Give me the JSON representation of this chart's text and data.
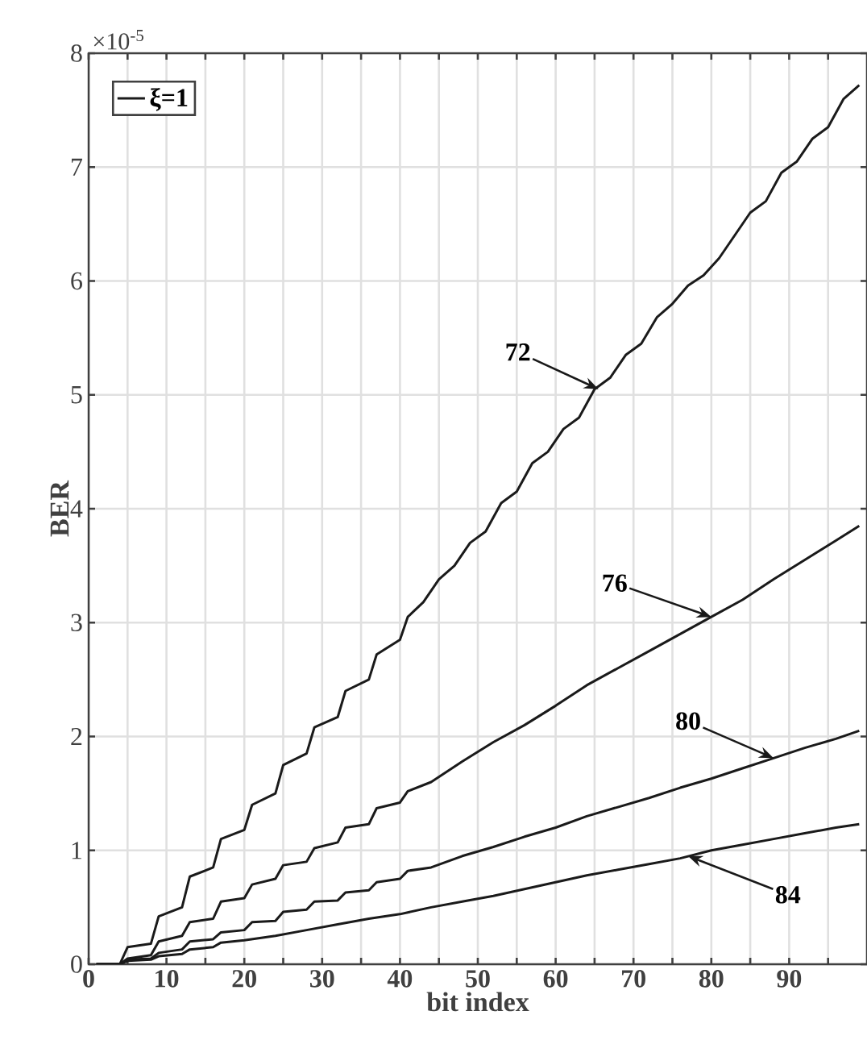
{
  "chart_data": {
    "type": "line",
    "xlabel": "bit index",
    "ylabel": "BER",
    "xlim": [
      0,
      100
    ],
    "ylim": [
      0,
      8
    ],
    "xticks": [
      0,
      {
        "value": 5,
        "label": null
      },
      10,
      {
        "value": 15,
        "label": null
      },
      20,
      {
        "value": 25,
        "label": null
      },
      30,
      {
        "value": 35,
        "label": null
      },
      40,
      {
        "value": 45,
        "label": null
      },
      50,
      {
        "value": 55,
        "label": null
      },
      60,
      {
        "value": 65,
        "label": null
      },
      70,
      {
        "value": 75,
        "label": null
      },
      80,
      {
        "value": 85,
        "label": null
      },
      90,
      {
        "value": 95,
        "label": null
      }
    ],
    "yticks": [
      0,
      1,
      2,
      3,
      4,
      5,
      6,
      7,
      8
    ],
    "grid": true,
    "legend": "top left",
    "series": [
      {
        "name": "ξ=1",
        "color": "#1a1a1a",
        "x": [
          1,
          4,
          5,
          8,
          9,
          12,
          13,
          16,
          17,
          20,
          21,
          24,
          25,
          28,
          29,
          32,
          33,
          36,
          37,
          40,
          41,
          43,
          45,
          47,
          49,
          51,
          53,
          55,
          57,
          59,
          61,
          63,
          65,
          67,
          69,
          71,
          73,
          75,
          77,
          79,
          81,
          83,
          85,
          87,
          89,
          91,
          93,
          95,
          97,
          99
        ],
        "values": [
          0,
          0,
          0.15,
          0.18,
          0.42,
          0.5,
          0.77,
          0.85,
          1.1,
          1.18,
          1.4,
          1.5,
          1.75,
          1.85,
          2.08,
          2.17,
          2.4,
          2.5,
          2.72,
          2.85,
          3.05,
          3.18,
          3.38,
          3.5,
          3.7,
          3.8,
          4.05,
          4.15,
          4.4,
          4.5,
          4.7,
          4.8,
          5.05,
          5.15,
          5.35,
          5.45,
          5.68,
          5.8,
          5.96,
          6.05,
          6.2,
          6.4,
          6.6,
          6.7,
          6.95,
          7.05,
          7.25,
          7.35,
          7.6,
          7.72
        ]
      },
      {
        "color": "#1a1a1a",
        "x": [
          1,
          4,
          5,
          8,
          9,
          12,
          13,
          16,
          17,
          20,
          21,
          24,
          25,
          28,
          29,
          32,
          33,
          36,
          37,
          40,
          41,
          44,
          48,
          52,
          56,
          60,
          64,
          68,
          72,
          76,
          80,
          84,
          88,
          92,
          96,
          99
        ],
        "values": [
          0,
          0,
          0.05,
          0.08,
          0.2,
          0.25,
          0.37,
          0.4,
          0.55,
          0.58,
          0.7,
          0.75,
          0.87,
          0.9,
          1.02,
          1.07,
          1.2,
          1.23,
          1.37,
          1.42,
          1.52,
          1.6,
          1.78,
          1.95,
          2.1,
          2.27,
          2.45,
          2.6,
          2.75,
          2.9,
          3.05,
          3.2,
          3.38,
          3.55,
          3.72,
          3.85
        ]
      },
      {
        "color": "#1a1a1a",
        "x": [
          1,
          4,
          5,
          8,
          9,
          12,
          13,
          16,
          17,
          20,
          21,
          24,
          25,
          28,
          29,
          32,
          33,
          36,
          37,
          40,
          41,
          44,
          48,
          52,
          56,
          60,
          64,
          68,
          72,
          76,
          80,
          84,
          88,
          92,
          96,
          99
        ],
        "values": [
          0,
          0,
          0.04,
          0.05,
          0.1,
          0.13,
          0.2,
          0.22,
          0.28,
          0.3,
          0.37,
          0.38,
          0.46,
          0.48,
          0.55,
          0.56,
          0.63,
          0.65,
          0.72,
          0.75,
          0.82,
          0.85,
          0.95,
          1.03,
          1.12,
          1.2,
          1.3,
          1.38,
          1.46,
          1.55,
          1.63,
          1.72,
          1.81,
          1.9,
          1.98,
          2.05
        ]
      },
      {
        "color": "#1a1a1a",
        "x": [
          1,
          4,
          5,
          8,
          9,
          12,
          13,
          16,
          17,
          20,
          24,
          28,
          32,
          36,
          40,
          44,
          48,
          52,
          56,
          60,
          64,
          68,
          72,
          76,
          80,
          84,
          88,
          92,
          96,
          99
        ],
        "values": [
          0,
          0,
          0.03,
          0.04,
          0.07,
          0.09,
          0.13,
          0.15,
          0.19,
          0.21,
          0.25,
          0.3,
          0.35,
          0.4,
          0.44,
          0.5,
          0.55,
          0.6,
          0.66,
          0.72,
          0.78,
          0.83,
          0.88,
          0.93,
          1.0,
          1.05,
          1.1,
          1.15,
          1.2,
          1.23
        ]
      }
    ],
    "annotations": [
      "×10$^{-5}$",
      {
        "text": "72",
        "x": 65.5,
        "y": 5.05
      },
      {
        "text": "76",
        "x": 80,
        "y": 3.05
      },
      {
        "text": "80",
        "x": 88,
        "y": 1.81
      },
      {
        "text": "84",
        "x": 77,
        "y": 0.95
      }
    ]
  }
}
